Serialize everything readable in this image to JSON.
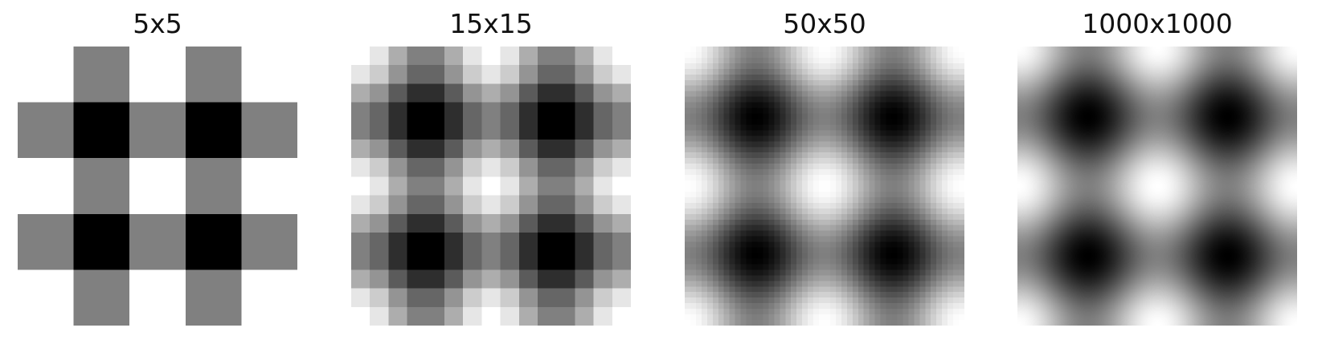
{
  "chart_data": [
    {
      "type": "heatmap",
      "title": "5x5",
      "grid_size": 5,
      "colormap": "gray",
      "function": "cos(x)+cos(y)",
      "xlabel": "",
      "ylabel": "",
      "grid": false
    },
    {
      "type": "heatmap",
      "title": "15x15",
      "grid_size": 15,
      "colormap": "gray",
      "function": "cos(x)+cos(y)",
      "xlabel": "",
      "ylabel": "",
      "grid": false
    },
    {
      "type": "heatmap",
      "title": "50x50",
      "grid_size": 50,
      "colormap": "gray",
      "function": "cos(x)+cos(y)",
      "xlabel": "",
      "ylabel": "",
      "grid": false
    },
    {
      "type": "heatmap",
      "title": "1000x1000",
      "grid_size": 1000,
      "colormap": "gray",
      "function": "cos(x)+cos(y)",
      "xlabel": "",
      "ylabel": "",
      "grid": false
    }
  ]
}
